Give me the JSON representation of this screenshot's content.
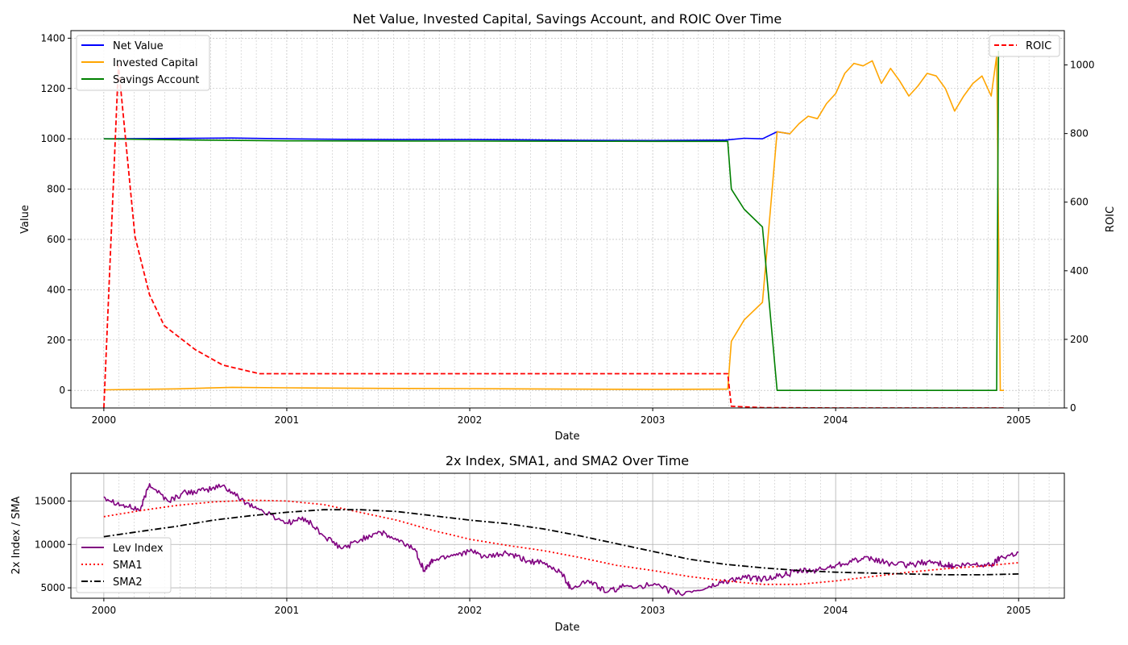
{
  "chart_data": [
    {
      "type": "line",
      "title": "Net Value, Invested Capital, Savings Account, and ROIC Over Time",
      "xlabel": "Date",
      "ylabel": "Value",
      "y2label": "ROIC",
      "xlim": [
        1999.82,
        2005.25
      ],
      "ylim": [
        -70,
        1430
      ],
      "y2lim": [
        0,
        1100
      ],
      "x_ticks": [
        2000,
        2001,
        2002,
        2003,
        2004,
        2005
      ],
      "y_ticks": [
        0,
        200,
        400,
        600,
        800,
        1000,
        1200,
        1400
      ],
      "y2_ticks": [
        0,
        200,
        400,
        600,
        800,
        1000
      ],
      "grid": true,
      "legend_left": "upper-left",
      "legend_right": "upper-right",
      "series": [
        {
          "name": "Net Value",
          "axis": "left",
          "color": "#0000ff",
          "dash": "solid",
          "points": [
            [
              2000.0,
              1000
            ],
            [
              2000.3,
              1001
            ],
            [
              2000.7,
              1003
            ],
            [
              2001.0,
              1000
            ],
            [
              2001.3,
              998
            ],
            [
              2001.6,
              997
            ],
            [
              2002.0,
              997
            ],
            [
              2002.3,
              996
            ],
            [
              2002.6,
              994
            ],
            [
              2003.0,
              993
            ],
            [
              2003.4,
              995
            ],
            [
              2003.5,
              1002
            ],
            [
              2003.6,
              1000
            ],
            [
              2003.68,
              1028
            ],
            [
              2003.75,
              1020
            ]
          ]
        },
        {
          "name": "Invested Capital",
          "axis": "left",
          "color": "#ffa500",
          "dash": "solid",
          "points": [
            [
              2000.0,
              2
            ],
            [
              2000.4,
              6
            ],
            [
              2000.7,
              12
            ],
            [
              2001.0,
              10
            ],
            [
              2001.5,
              8
            ],
            [
              2002.0,
              7
            ],
            [
              2002.5,
              5
            ],
            [
              2003.0,
              4
            ],
            [
              2003.41,
              5
            ],
            [
              2003.43,
              195
            ],
            [
              2003.5,
              280
            ],
            [
              2003.6,
              350
            ],
            [
              2003.68,
              1028
            ],
            [
              2003.75,
              1020
            ],
            [
              2003.8,
              1060
            ],
            [
              2003.85,
              1090
            ],
            [
              2003.9,
              1080
            ],
            [
              2003.95,
              1140
            ],
            [
              2004.0,
              1180
            ],
            [
              2004.05,
              1260
            ],
            [
              2004.1,
              1300
            ],
            [
              2004.15,
              1290
            ],
            [
              2004.2,
              1310
            ],
            [
              2004.25,
              1220
            ],
            [
              2004.3,
              1280
            ],
            [
              2004.35,
              1230
            ],
            [
              2004.4,
              1170
            ],
            [
              2004.45,
              1210
            ],
            [
              2004.5,
              1260
            ],
            [
              2004.55,
              1250
            ],
            [
              2004.6,
              1200
            ],
            [
              2004.65,
              1110
            ],
            [
              2004.7,
              1170
            ],
            [
              2004.75,
              1220
            ],
            [
              2004.8,
              1250
            ],
            [
              2004.85,
              1170
            ],
            [
              2004.88,
              1330
            ],
            [
              2004.9,
              0
            ],
            [
              2004.92,
              0
            ]
          ]
        },
        {
          "name": "Savings Account",
          "axis": "left",
          "color": "#008000",
          "dash": "solid",
          "points": [
            [
              2000.0,
              1000
            ],
            [
              2000.5,
              995
            ],
            [
              2001.0,
              992
            ],
            [
              2002.0,
              991
            ],
            [
              2003.0,
              990
            ],
            [
              2003.41,
              990
            ],
            [
              2003.43,
              800
            ],
            [
              2003.5,
              720
            ],
            [
              2003.6,
              650
            ],
            [
              2003.68,
              0
            ],
            [
              2004.88,
              0
            ],
            [
              2004.89,
              1350
            ]
          ]
        },
        {
          "name": "ROIC",
          "axis": "right",
          "color": "#ff0000",
          "dash": "dashed",
          "points": [
            [
              2000.0,
              0
            ],
            [
              2000.08,
              1000
            ],
            [
              2000.17,
              500
            ],
            [
              2000.25,
              330
            ],
            [
              2000.33,
              240
            ],
            [
              2000.5,
              170
            ],
            [
              2000.65,
              125
            ],
            [
              2000.85,
              100
            ],
            [
              2001.0,
              100
            ],
            [
              2002.0,
              100
            ],
            [
              2003.0,
              100
            ],
            [
              2003.41,
              100
            ],
            [
              2003.43,
              5
            ],
            [
              2003.6,
              1
            ],
            [
              2004.0,
              0
            ],
            [
              2004.92,
              0
            ]
          ]
        }
      ]
    },
    {
      "type": "line",
      "title": "2x Index, SMA1, and SMA2 Over Time",
      "xlabel": "Date",
      "ylabel": "2x Index / SMA",
      "xlim": [
        1999.82,
        2005.25
      ],
      "ylim": [
        3800,
        18200
      ],
      "x_ticks": [
        2000,
        2001,
        2002,
        2003,
        2004,
        2005
      ],
      "y_ticks": [
        5000,
        10000,
        15000
      ],
      "grid": true,
      "legend": "lower-left",
      "series": [
        {
          "name": "Lev Index",
          "color": "#800080",
          "dash": "solid",
          "noise": 350,
          "points": [
            [
              2000.0,
              15500
            ],
            [
              2000.1,
              14500
            ],
            [
              2000.2,
              14000
            ],
            [
              2000.25,
              17000
            ],
            [
              2000.35,
              15000
            ],
            [
              2000.45,
              16000
            ],
            [
              2000.55,
              16200
            ],
            [
              2000.65,
              16800
            ],
            [
              2000.75,
              15200
            ],
            [
              2000.85,
              14000
            ],
            [
              2001.0,
              12500
            ],
            [
              2001.1,
              13000
            ],
            [
              2001.2,
              11000
            ],
            [
              2001.3,
              9500
            ],
            [
              2001.4,
              10500
            ],
            [
              2001.5,
              11500
            ],
            [
              2001.6,
              10500
            ],
            [
              2001.7,
              9500
            ],
            [
              2001.75,
              7000
            ],
            [
              2001.8,
              8200
            ],
            [
              2001.9,
              8800
            ],
            [
              2002.0,
              9200
            ],
            [
              2002.1,
              8500
            ],
            [
              2002.2,
              9000
            ],
            [
              2002.3,
              8200
            ],
            [
              2002.4,
              7800
            ],
            [
              2002.5,
              6800
            ],
            [
              2002.55,
              5000
            ],
            [
              2002.65,
              5800
            ],
            [
              2002.75,
              4500
            ],
            [
              2002.85,
              5200
            ],
            [
              2003.0,
              5300
            ],
            [
              2003.15,
              4300
            ],
            [
              2003.3,
              5000
            ],
            [
              2003.4,
              5800
            ],
            [
              2003.5,
              6200
            ],
            [
              2003.6,
              6000
            ],
            [
              2003.7,
              6400
            ],
            [
              2003.8,
              6900
            ],
            [
              2003.9,
              7000
            ],
            [
              2004.0,
              7600
            ],
            [
              2004.1,
              8200
            ],
            [
              2004.2,
              8300
            ],
            [
              2004.3,
              7800
            ],
            [
              2004.4,
              7600
            ],
            [
              2004.5,
              8000
            ],
            [
              2004.6,
              7700
            ],
            [
              2004.65,
              7400
            ],
            [
              2004.75,
              7700
            ],
            [
              2004.85,
              7600
            ],
            [
              2004.9,
              8500
            ],
            [
              2005.0,
              9100
            ]
          ]
        },
        {
          "name": "SMA1",
          "color": "#ff0000",
          "dash": "dotted",
          "points": [
            [
              2000.0,
              13200
            ],
            [
              2000.2,
              13900
            ],
            [
              2000.4,
              14500
            ],
            [
              2000.6,
              14900
            ],
            [
              2000.8,
              15100
            ],
            [
              2001.0,
              15000
            ],
            [
              2001.2,
              14600
            ],
            [
              2001.4,
              13700
            ],
            [
              2001.6,
              12800
            ],
            [
              2001.8,
              11600
            ],
            [
              2002.0,
              10600
            ],
            [
              2002.2,
              9900
            ],
            [
              2002.4,
              9300
            ],
            [
              2002.6,
              8500
            ],
            [
              2002.8,
              7600
            ],
            [
              2003.0,
              7000
            ],
            [
              2003.2,
              6300
            ],
            [
              2003.4,
              5800
            ],
            [
              2003.6,
              5400
            ],
            [
              2003.8,
              5400
            ],
            [
              2004.0,
              5800
            ],
            [
              2004.2,
              6300
            ],
            [
              2004.4,
              6800
            ],
            [
              2004.6,
              7200
            ],
            [
              2004.8,
              7500
            ],
            [
              2005.0,
              7900
            ]
          ]
        },
        {
          "name": "SMA2",
          "color": "#000000",
          "dash": "dashdot",
          "points": [
            [
              2000.0,
              10900
            ],
            [
              2000.2,
              11500
            ],
            [
              2000.4,
              12100
            ],
            [
              2000.6,
              12800
            ],
            [
              2000.8,
              13300
            ],
            [
              2001.0,
              13700
            ],
            [
              2001.2,
              14000
            ],
            [
              2001.4,
              14000
            ],
            [
              2001.6,
              13800
            ],
            [
              2001.8,
              13300
            ],
            [
              2002.0,
              12800
            ],
            [
              2002.2,
              12400
            ],
            [
              2002.4,
              11800
            ],
            [
              2002.6,
              11000
            ],
            [
              2002.8,
              10100
            ],
            [
              2003.0,
              9200
            ],
            [
              2003.2,
              8300
            ],
            [
              2003.4,
              7700
            ],
            [
              2003.6,
              7300
            ],
            [
              2003.8,
              7000
            ],
            [
              2004.0,
              6800
            ],
            [
              2004.2,
              6700
            ],
            [
              2004.4,
              6600
            ],
            [
              2004.6,
              6500
            ],
            [
              2004.8,
              6500
            ],
            [
              2005.0,
              6600
            ]
          ]
        }
      ]
    }
  ]
}
